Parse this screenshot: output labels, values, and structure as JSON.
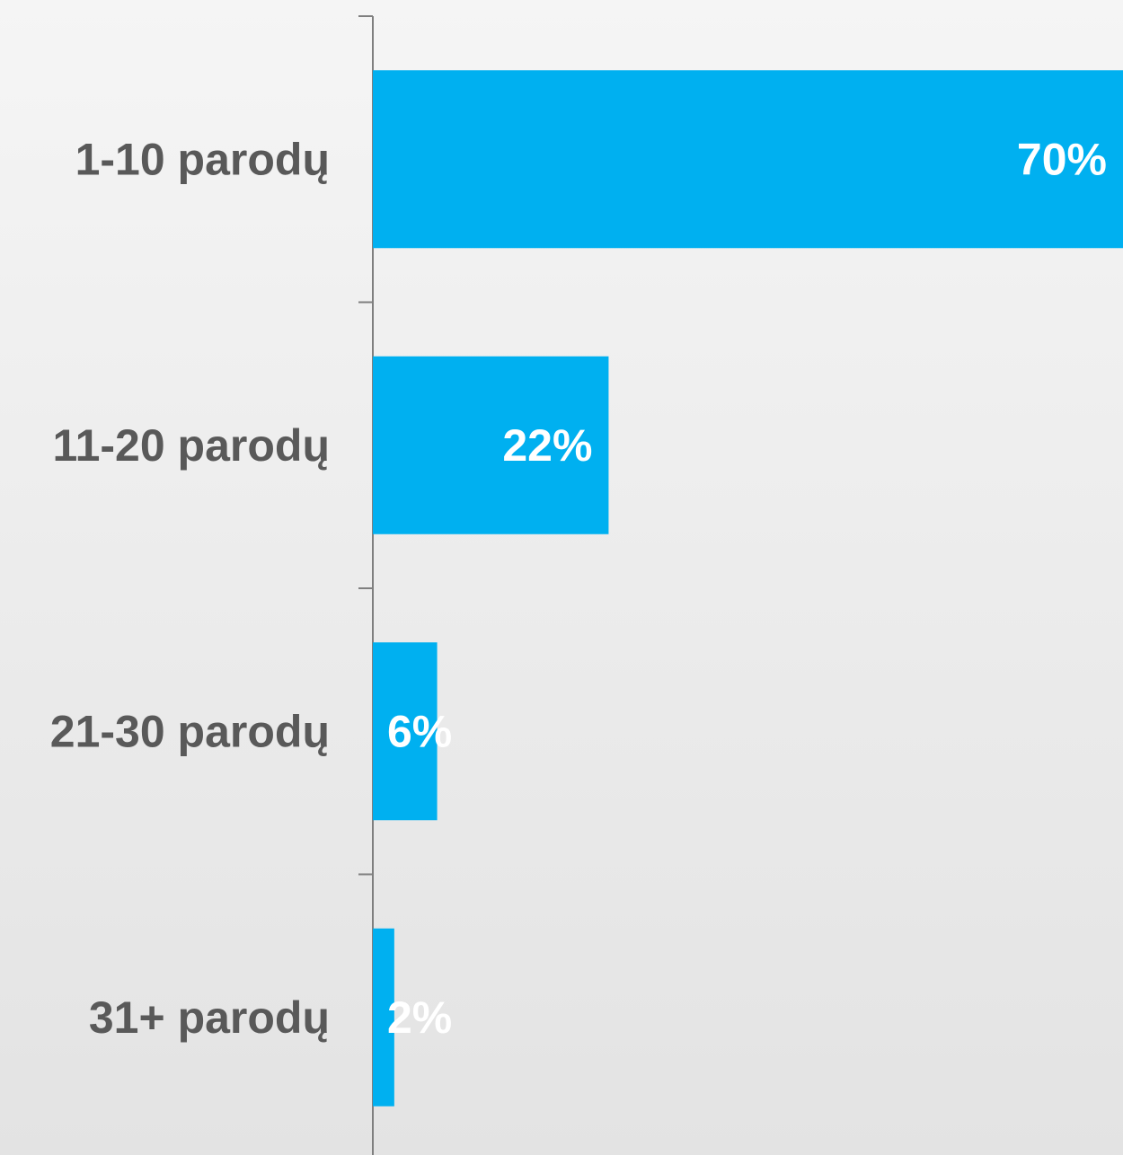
{
  "chart_data": {
    "type": "bar",
    "orientation": "horizontal",
    "categories": [
      "1-10 parodų",
      "11-20 parodų",
      "21-30 parodų",
      "31+ parodų"
    ],
    "values": [
      70,
      22,
      6,
      2
    ],
    "value_labels": [
      "70%",
      "22%",
      "6%",
      "2%"
    ],
    "title": "",
    "xlabel": "",
    "ylabel": "",
    "xlim": [
      0,
      70
    ],
    "grid": false,
    "legend": "none",
    "colors": {
      "bar": "#00b0f0",
      "category_text": "#595959",
      "value_text": "#ffffff",
      "axis": "#7f7f7f"
    }
  }
}
